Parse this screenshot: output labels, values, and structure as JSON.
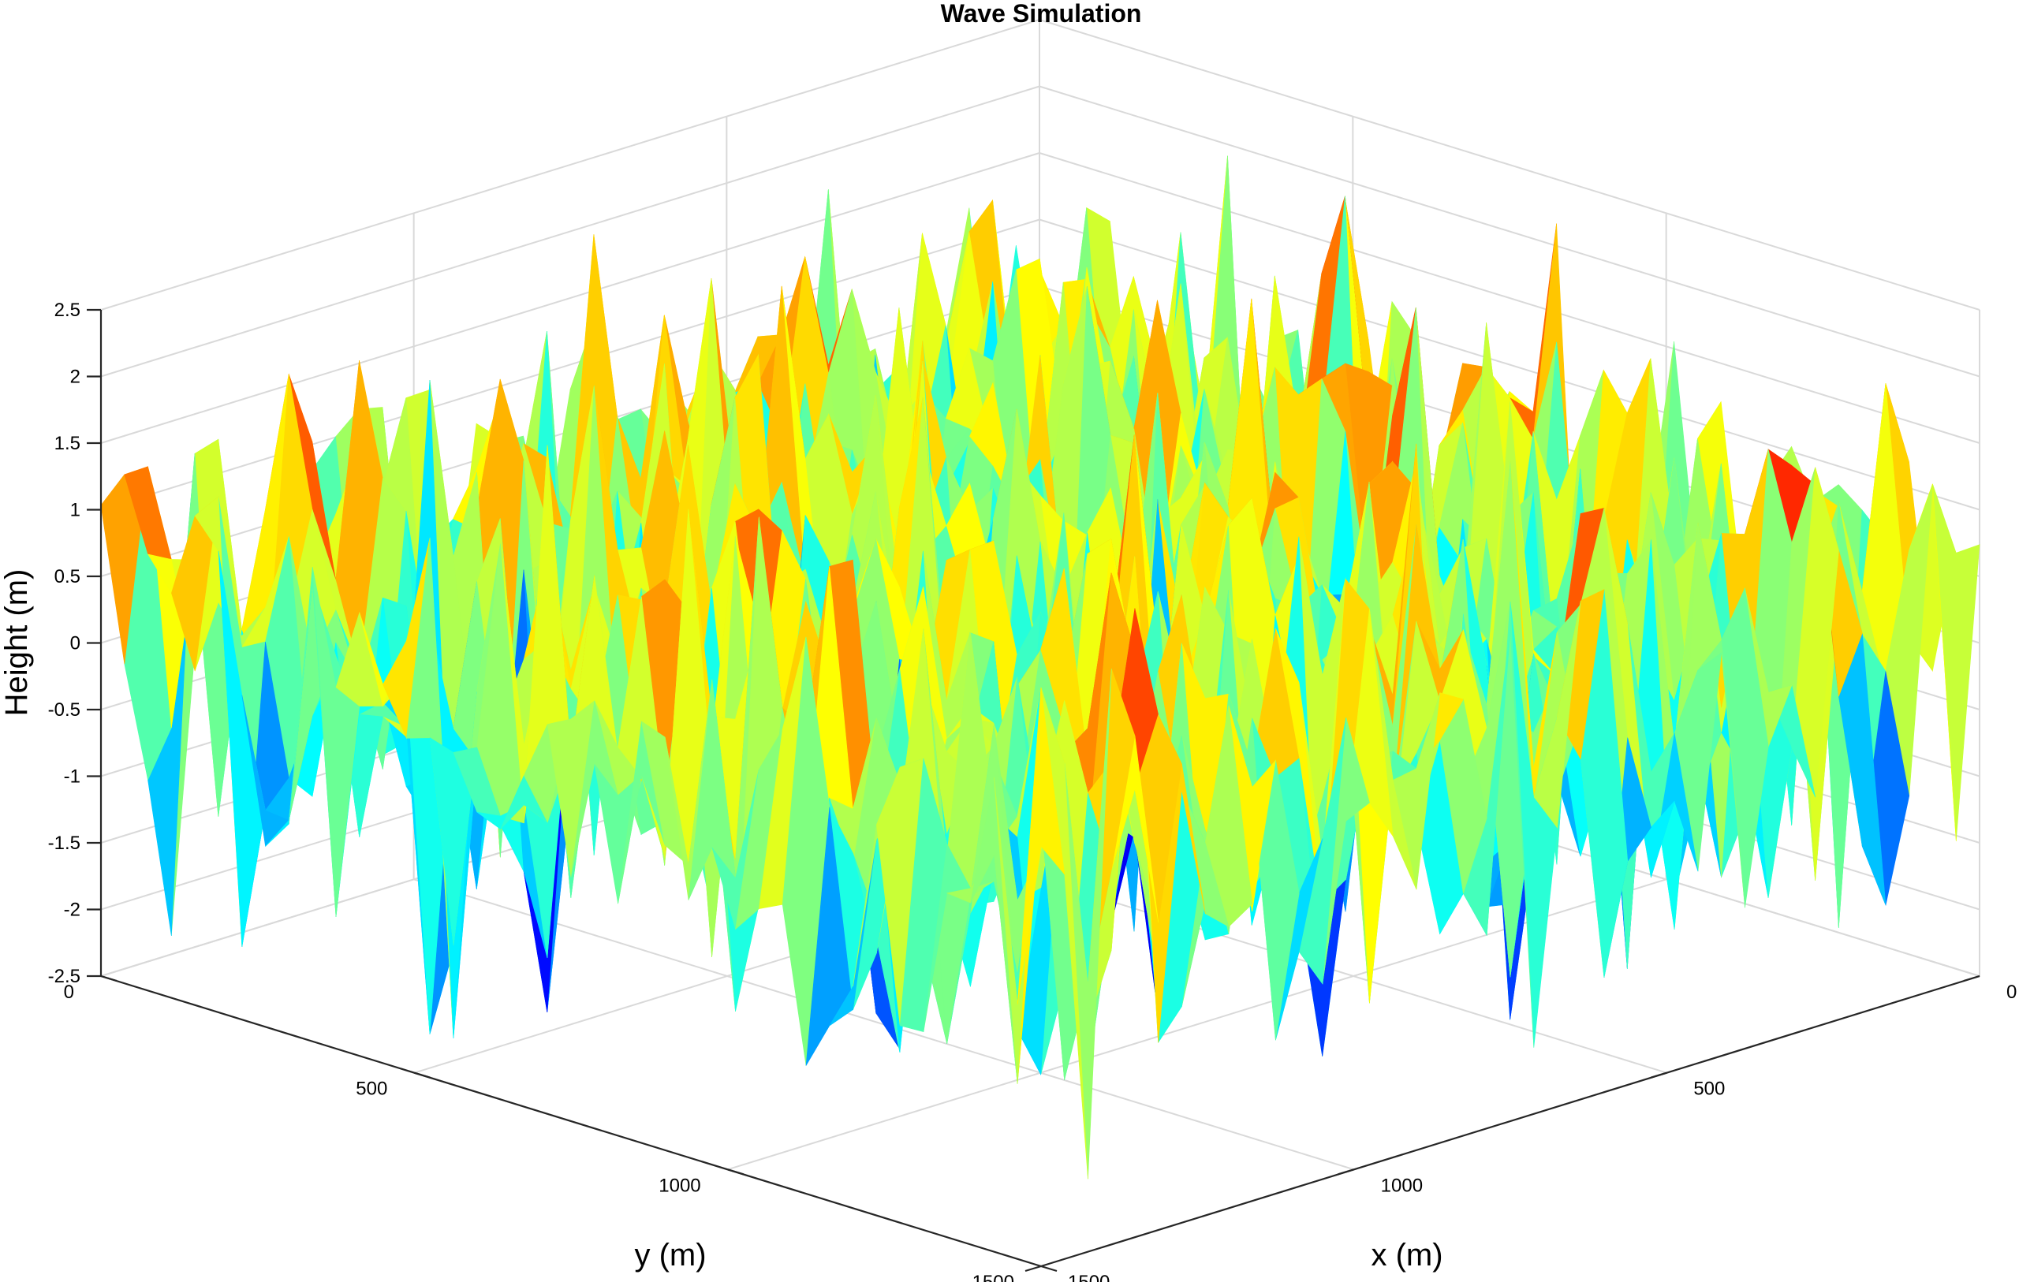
{
  "chart_data": {
    "type": "surface",
    "title": "Wave Simulation",
    "xlabel": "x (m)",
    "ylabel": "y (m)",
    "zlabel": "Height (m)",
    "xlim": [
      0,
      1500
    ],
    "ylim": [
      0,
      1500
    ],
    "zlim": [
      -2.5,
      2.5
    ],
    "x_ticks": [
      0,
      500,
      1000,
      1500
    ],
    "x_tick_labels": [
      "0",
      "500",
      "1000",
      "1500"
    ],
    "y_ticks": [
      0,
      500,
      1000,
      1500
    ],
    "y_tick_labels": [
      "0",
      "500",
      "1000",
      "1500"
    ],
    "z_ticks": [
      -2.5,
      -2,
      -1.5,
      -1,
      -0.5,
      0,
      0.5,
      1,
      1.5,
      2,
      2.5
    ],
    "z_tick_labels": [
      "-2.5",
      "-2",
      "-1.5",
      "-1",
      "-0.5",
      "0",
      "0.5",
      "1",
      "1.5",
      "2",
      "2.5"
    ],
    "grid": true,
    "colormap": "jet",
    "colormap_stops": [
      "#00008f",
      "#0000ff",
      "#00ffff",
      "#ffff00",
      "#ff0000",
      "#800000"
    ],
    "surface": {
      "grid_size": [
        40,
        40
      ],
      "x_range": [
        0,
        1500
      ],
      "y_range": [
        0,
        1500
      ],
      "height_rms": 0.9,
      "height_min": -2.5,
      "height_max": 2.3
    }
  }
}
